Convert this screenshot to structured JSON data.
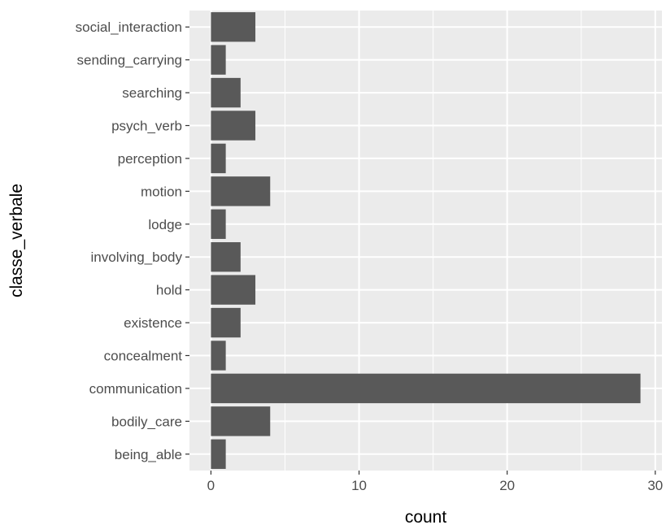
{
  "chart_data": {
    "type": "bar",
    "orientation": "horizontal",
    "xlabel": "count",
    "ylabel": "classe_verbale",
    "categories": [
      "being_able",
      "bodily_care",
      "communication",
      "concealment",
      "existence",
      "hold",
      "involving_body",
      "lodge",
      "motion",
      "perception",
      "psych_verb",
      "searching",
      "sending_carrying",
      "social_interaction"
    ],
    "values": [
      1,
      4,
      29,
      1,
      2,
      3,
      2,
      1,
      4,
      1,
      3,
      2,
      1,
      3
    ],
    "x_ticks": [
      0,
      10,
      20,
      30
    ],
    "xlim": [
      -1.45,
      30.45
    ],
    "grid": true,
    "legend": "none",
    "colors": {
      "panel": "#ebebeb",
      "grid": "#ffffff",
      "bar": "#595959",
      "tick_text": "#4d4d4d",
      "tick_mark": "#333333"
    }
  }
}
